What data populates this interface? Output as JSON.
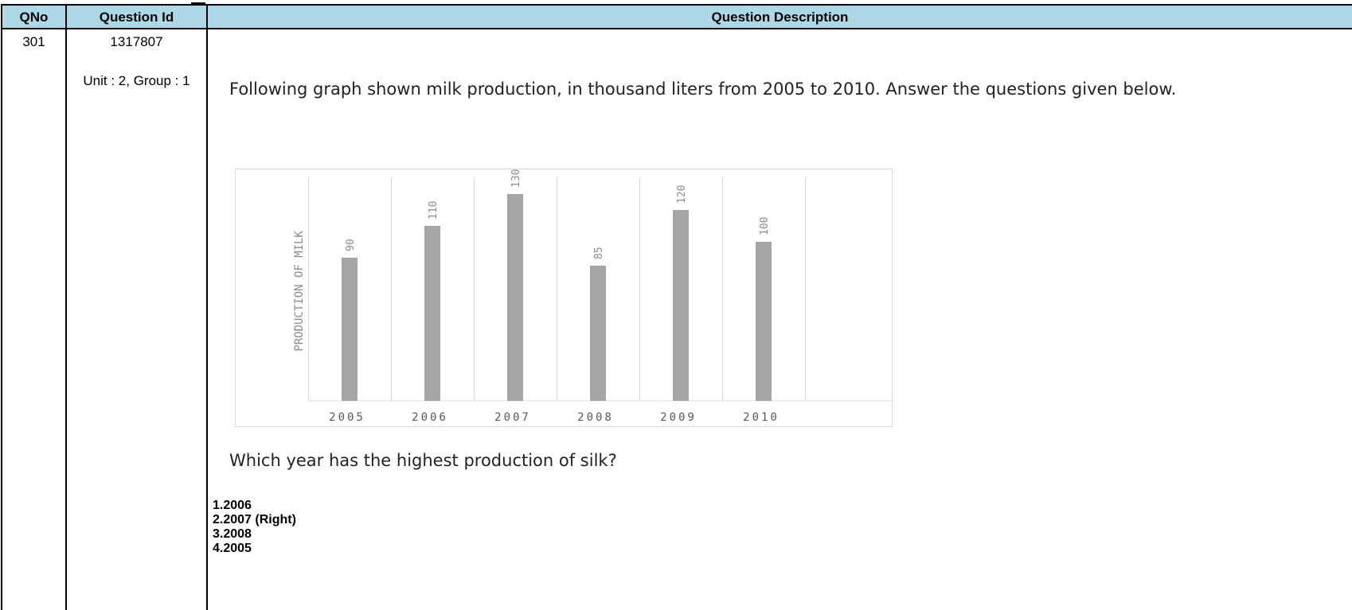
{
  "table": {
    "headers": {
      "qno": "QNo",
      "question_id": "Question Id",
      "description": "Question Description"
    },
    "row": {
      "qno": "301",
      "question_id": "1317807",
      "unit_group": "Unit : 2, Group : 1",
      "intro": "Following graph shown milk production, in thousand liters from 2005  to 2010.  Answer the questions given below.",
      "question": "Which  year has the highest production of silk?",
      "options": [
        "1.2006",
        "2.2007 (Right)",
        "3.2008",
        "4.2005"
      ]
    }
  },
  "chart_data": {
    "type": "bar",
    "categories": [
      "2005",
      "2006",
      "2007",
      "2008",
      "2009",
      "2010"
    ],
    "values": [
      90,
      110,
      130,
      85,
      120,
      100
    ],
    "data_labels": [
      "90",
      "110",
      "130",
      "85",
      "120",
      "100"
    ],
    "ylabel": "PRODUCTION OF MILK",
    "xlabel": "",
    "ylim": [
      0,
      130
    ],
    "grid": "vertical",
    "bar_color": "#a5a5a5",
    "label_color": "#8c8c8c"
  },
  "colors": {
    "header_bg": "#add8e6",
    "border": "#000000"
  }
}
